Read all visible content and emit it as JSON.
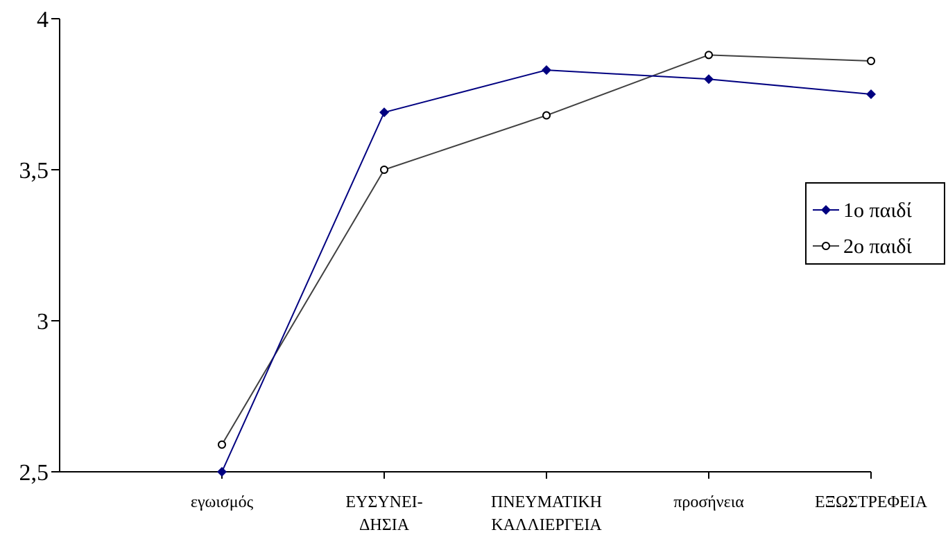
{
  "chart_data": {
    "type": "line",
    "categories": [
      [
        "εγωισμός"
      ],
      [
        "ΕΥΣΥΝΕΙ-",
        "ΔΗΣΙΑ"
      ],
      [
        "ΠΝΕΥΜΑΤΙΚΗ",
        "ΚΑΛΛΙΕΡΓΕΙΑ"
      ],
      [
        "προσήνεια"
      ],
      [
        "ΕΞΩΣΤΡΕΦΕΙΑ"
      ]
    ],
    "series": [
      {
        "name": "1ο παιδί",
        "values": [
          2.5,
          3.69,
          3.83,
          3.8,
          3.75
        ],
        "color": "#000080",
        "marker": "diamond"
      },
      {
        "name": "2ο παιδί",
        "values": [
          2.59,
          3.5,
          3.68,
          3.88,
          3.86
        ],
        "color": "#404040",
        "marker": "circle"
      }
    ],
    "yticks": [
      "2,5",
      "3",
      "3,5",
      "4"
    ],
    "ylim": [
      2.5,
      4
    ],
    "grid": false,
    "legend_position": "right"
  }
}
